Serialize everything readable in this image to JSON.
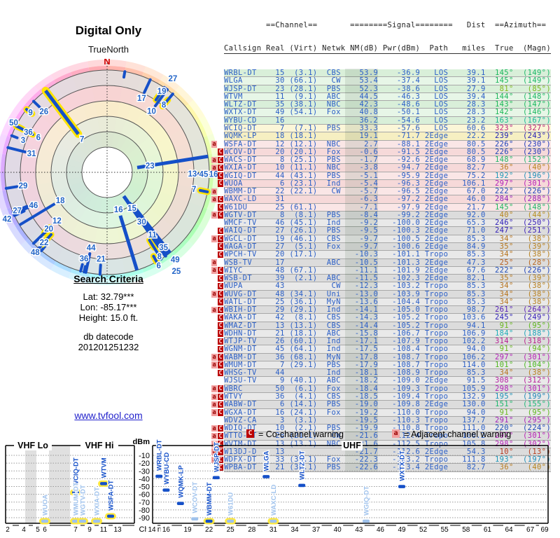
{
  "title": "Digital Only",
  "polar": {
    "north_label": "TrueNorth",
    "n_label": "N"
  },
  "search": {
    "heading": "Search Criteria",
    "lat": "Lat: 32.79***",
    "lon": "Lon: -85.17***",
    "height": "Height: 15.0 ft.",
    "datecode_label": "db datecode",
    "datecode": "201201251232",
    "link": "www.tvfool.com"
  },
  "legend": {
    "co_badge": "C",
    "co_text": "= Co-channel warning",
    "adj_badge": "a",
    "adj_text": "= Adjacent channel warning"
  },
  "colors": {
    "row_text": "#2b5fc7",
    "strong_marker": "#1550c8",
    "weak_marker": "#9fc2ec",
    "highlight": "#ffe93e",
    "co_bg": "#bb0000",
    "adj_bg": "#f2a0a0"
  },
  "table": {
    "header1": "         ==Channel==       ========Signal========   Dist  ==Azimuth==",
    "header2": "Callsign Real (Virt) Netwk NM(dB) Pwr(dBm)  Path   miles  True  (Magn)",
    "rows": [
      [
        "WRBL-DT",
        15,
        "(3.1)",
        "CBS",
        53.9,
        -36.9,
        "LOS",
        39.1,
        145,
        149,
        "",
        "g",
        ""
      ],
      [
        "WLGA",
        30,
        "(66.1)",
        "CW",
        53.4,
        -37.4,
        "LOS",
        39.1,
        145,
        149,
        "",
        "g",
        ""
      ],
      [
        "WJSP-DT",
        23,
        "(28.1)",
        "PBS",
        52.3,
        -38.6,
        "LOS",
        27.9,
        81,
        85,
        "",
        "g",
        ""
      ],
      [
        "WTVM",
        11,
        "(9.1)",
        "ABC",
        44.5,
        -46.3,
        "LOS",
        39.4,
        144,
        148,
        "",
        "g",
        ""
      ],
      [
        "WLTZ-DT",
        35,
        "(38.1)",
        "NBC",
        42.3,
        -48.6,
        "LOS",
        28.3,
        143,
        147,
        "",
        "g",
        ""
      ],
      [
        "WXTX-DT",
        49,
        "(54.1)",
        "Fox",
        40.8,
        -50.1,
        "LOS",
        28.3,
        142,
        146,
        "",
        "g",
        ""
      ],
      [
        "WYBU-CD",
        16,
        "",
        "",
        36.2,
        -54.6,
        "LOS",
        23.2,
        163,
        167,
        "",
        "g",
        ""
      ],
      [
        "WCIQ-DT",
        7,
        "(7.1)",
        "PBS",
        33.3,
        -57.6,
        "LOS",
        60.6,
        323,
        327,
        "",
        "y",
        "h"
      ],
      [
        "WQMK-LP",
        18,
        "(18.1)",
        "",
        19.1,
        -71.7,
        "2Edge",
        22.2,
        239,
        243,
        "",
        "y",
        ""
      ],
      [
        "WSFA-DT",
        12,
        "(12.1)",
        "NBC",
        2.7,
        -88.1,
        "2Edge",
        80.5,
        226,
        230,
        "a",
        "p",
        ""
      ],
      [
        "WCOV-DT",
        20,
        "(20.1)",
        "Fox",
        -0.6,
        -91.5,
        "2Edge",
        80.5,
        226,
        230,
        "C",
        "p",
        "h"
      ],
      [
        "WACS-DT",
        8,
        "(25.1)",
        "PBS",
        -1.7,
        -92.6,
        "2Edge",
        68.9,
        148,
        152,
        "aC",
        "p",
        "h"
      ],
      [
        "WXIA-DT",
        10,
        "(11.1)",
        "NBC",
        -3.8,
        -94.7,
        "2Edge",
        82.7,
        36,
        40,
        "aC",
        "p",
        ""
      ],
      [
        "WGIQ-DT",
        44,
        "(43.1)",
        "PBS",
        -5.1,
        -95.9,
        "2Edge",
        75.2,
        192,
        196,
        "C",
        "p",
        ""
      ],
      [
        "WUOA",
        6,
        "(23.1)",
        "Ind",
        -5.4,
        -96.3,
        "2Edge",
        106.1,
        297,
        301,
        "C",
        "p",
        "h"
      ],
      [
        "WBMM-DT",
        22,
        "(22.1)",
        "CW",
        -5.7,
        -96.5,
        "2Edge",
        67.0,
        222,
        226,
        "a",
        "p",
        "h"
      ],
      [
        "WAXC-LD",
        31,
        "",
        "",
        -6.3,
        -97.2,
        "2Edge",
        46.0,
        284,
        288,
        "aC",
        "p",
        ""
      ],
      [
        "W61DU",
        25,
        "(61.1)",
        "",
        -7.1,
        -97.9,
        "2Edge",
        21.7,
        145,
        148,
        "C",
        "p",
        "h"
      ],
      [
        "WGTV-DT",
        8,
        "(8.1)",
        "PBS",
        -8.4,
        -99.2,
        "2Edge",
        92.0,
        40,
        44,
        "aC",
        "gr",
        "h"
      ],
      [
        "WMCF-TV",
        46,
        "(45.1)",
        "Ind",
        -9.2,
        -100.0,
        "2Edge",
        65.3,
        246,
        250,
        "",
        "gr",
        ""
      ],
      [
        "WAIQ-DT",
        27,
        "(26.1)",
        "PBS",
        -9.5,
        -100.3,
        "2Edge",
        71.0,
        247,
        251,
        "C",
        "gr",
        ""
      ],
      [
        "WGCL-DT",
        19,
        "(46.1)",
        "CBS",
        -9.7,
        -100.5,
        "2Edge",
        85.3,
        34,
        38,
        "aC",
        "gr",
        "h"
      ],
      [
        "WAGA-DT",
        27,
        "(5.1)",
        "Fox",
        -9.7,
        -100.6,
        "2Edge",
        84.9,
        35,
        39,
        "C",
        "gr",
        ""
      ],
      [
        "WPCH-TV",
        20,
        "(17.1)",
        "",
        -10.3,
        -101.1,
        "Tropo",
        85.3,
        34,
        38,
        "C",
        "gr",
        "n"
      ],
      [
        "WSB-TV",
        17,
        "",
        "ABC",
        -10.5,
        -101.3,
        "2Edge",
        47.3,
        25,
        28,
        "a",
        "gr",
        ""
      ],
      [
        "WIYC",
        48,
        "(67.1)",
        "",
        -11.1,
        -101.9,
        "2Edge",
        67.6,
        222,
        226,
        "aC",
        "gr",
        "h"
      ],
      [
        "WSB-DT",
        39,
        "(2.1)",
        "ABC",
        -11.5,
        -102.3,
        "2Edge",
        82.1,
        35,
        39,
        "C",
        "gr",
        "n"
      ],
      [
        "WUPA",
        43,
        "",
        "CW",
        -12.3,
        -103.2,
        "Tropo",
        85.3,
        34,
        38,
        "C",
        "gr",
        "n"
      ],
      [
        "WUVG-DT",
        48,
        "(34.1)",
        "Uni",
        -13.0,
        -103.9,
        "Tropo",
        85.3,
        34,
        38,
        "aC",
        "gr",
        "n"
      ],
      [
        "WATL-DT",
        25,
        "(36.1)",
        "MyN",
        -13.6,
        -104.4,
        "Tropo",
        85.3,
        34,
        38,
        "C",
        "gr",
        "n"
      ],
      [
        "WBIH-DT",
        29,
        "(29.1)",
        "Ind",
        -14.1,
        -105.0,
        "Tropo",
        98.7,
        261,
        264,
        "aC",
        "gr",
        ""
      ],
      [
        "WAKA-DT",
        42,
        "(8.1)",
        "CBS",
        -14.3,
        -105.2,
        "Tropo",
        103.6,
        245,
        249,
        "C",
        "gr",
        ""
      ],
      [
        "WMAZ-DT",
        13,
        "(13.1)",
        "CBS",
        -14.4,
        -105.2,
        "Tropo",
        94.1,
        91,
        95,
        "C",
        "gr",
        ""
      ],
      [
        "WDHN-DT",
        21,
        "(18.1)",
        "ABC",
        -15.8,
        -106.7,
        "Tropo",
        106.9,
        184,
        188,
        "C",
        "gr",
        ""
      ],
      [
        "WTJP-TV",
        26,
        "(60.1)",
        "Ind",
        -17.1,
        -107.9,
        "Tropo",
        102.2,
        314,
        318,
        "C",
        "gr",
        ""
      ],
      [
        "WGNM-DT",
        45,
        "(64.1)",
        "Ind",
        -17.5,
        -108.4,
        "Tropo",
        94.0,
        91,
        94,
        "C",
        "gr",
        "h"
      ],
      [
        "WABM-DT",
        36,
        "(68.1)",
        "MyN",
        -17.8,
        -108.7,
        "Tropo",
        106.2,
        297,
        301,
        "aC",
        "gr",
        "h"
      ],
      [
        "WMUM-DT",
        7,
        "(29.1)",
        "PBS",
        -17.9,
        -108.7,
        "Tropo",
        114.0,
        101,
        104,
        "aC",
        "gr",
        "h"
      ],
      [
        "WHSG-TV",
        44,
        "",
        "Ind",
        -18.1,
        -108.9,
        "Tropo",
        85.3,
        34,
        38,
        "C",
        "gr",
        "n"
      ],
      [
        "WJSU-TV",
        9,
        "(40.1)",
        "ABC",
        -18.2,
        -109.0,
        "2Edge",
        91.5,
        308,
        312,
        "",
        "gr",
        "h"
      ],
      [
        "WBRC",
        50,
        "(6.1)",
        "Fox",
        -18.4,
        -109.3,
        "Tropo",
        105.9,
        298,
        301,
        "aC",
        "gr",
        ""
      ],
      [
        "WTVY",
        36,
        "(4.1)",
        "CBS",
        -18.5,
        -109.4,
        "Tropo",
        132.9,
        195,
        199,
        "aC",
        "gr",
        ""
      ],
      [
        "WABW-DT",
        6,
        "(14.1)",
        "PBS",
        -19.0,
        -109.8,
        "2Edge",
        130.0,
        151,
        155,
        "aC",
        "gr",
        "h"
      ],
      [
        "WGXA-DT",
        16,
        "(24.1)",
        "Fox",
        -19.2,
        -110.0,
        "Tropo",
        94.0,
        91,
        95,
        "aC",
        "gr",
        ""
      ],
      [
        "WDVZ-CA",
        3,
        "(3.1)",
        "",
        -19.5,
        -110.3,
        "Tropo",
        137.7,
        291,
        295,
        "",
        "gr",
        ""
      ],
      [
        "WDIQ-DT",
        10,
        "(2.1)",
        "PBS",
        -19.9,
        -110.8,
        "Tropo",
        111.0,
        220,
        224,
        "aC",
        "gr",
        "n"
      ],
      [
        "WTTO-DT",
        28,
        "(21.1)",
        "CW",
        -21.6,
        -112.4,
        "Tropo",
        106.2,
        297,
        301,
        "aC",
        "gr",
        "n"
      ],
      [
        "WVTM-DT",
        13,
        "(13.1)",
        "NBC",
        -21.6,
        -112.5,
        "Tropo",
        105.8,
        298,
        302,
        "aC",
        "gr",
        "n"
      ],
      [
        "W13DJ-D",
        13,
        "",
        "",
        -21.7,
        -112.6,
        "2Edge",
        54.3,
        10,
        13,
        "aC",
        "gr",
        "n"
      ],
      [
        "WDFX-DT",
        33,
        "(34.1)",
        "Fox",
        -22.3,
        -113.2,
        "Tropo",
        111.8,
        193,
        197,
        "aC",
        "gr",
        "n"
      ],
      [
        "WPBA-DT",
        21,
        "(30.1)",
        "PBS",
        -22.6,
        -113.4,
        "2Edge",
        82.7,
        36,
        40,
        "C",
        "gr",
        "n"
      ]
    ]
  },
  "chart_data": [
    {
      "type": "radar",
      "title": "Digital Only",
      "north_label": "TrueNorth",
      "rings_inner_to_outer": [
        "green",
        "light-green",
        "yellow",
        "pink",
        "gray",
        "azimuth-hue rim"
      ],
      "note": "spokes generated from table.rows: angle = True azimuth, length = NM(dB), label = real channel"
    },
    {
      "type": "scatter",
      "name": "VHF",
      "xlabel": "Channel",
      "ylabel": "dBm",
      "band_labels": [
        "VHF Lo",
        "VHF Hi"
      ],
      "yticks": [
        -10,
        -20,
        -30,
        -40,
        -50,
        -60,
        -70,
        -80,
        -90
      ],
      "xticks": [
        2,
        4,
        5,
        6,
        7,
        9,
        11,
        13
      ],
      "points": [
        {
          "cs": "WUOA",
          "ch": 6,
          "pwr": -96.3,
          "weak": true,
          "hl": true
        },
        {
          "cs": "WCIQ-DT",
          "ch": 7,
          "pwr": -57.6,
          "weak": false,
          "hl": true
        },
        {
          "cs": "WMUM-DT",
          "ch": 7,
          "pwr": -108.7,
          "weak": true,
          "hl": true
        },
        {
          "cs": "WGTV-DT",
          "ch": 8,
          "pwr": -99.2,
          "weak": true,
          "hl": true
        },
        {
          "cs": "WXIA-DT",
          "ch": 10,
          "pwr": -94.7,
          "weak": true,
          "hl": true
        },
        {
          "cs": "WTVM",
          "ch": 11,
          "pwr": -46.3,
          "weak": false,
          "hl": true
        },
        {
          "cs": "WSFA-DT",
          "ch": 12,
          "pwr": -88.1,
          "weak": false,
          "hl": true
        }
      ]
    },
    {
      "type": "scatter",
      "name": "UHF",
      "xlabel": "Channel",
      "ylabel": "dBm",
      "yticks": [
        -10,
        -20,
        -30,
        -40,
        -50,
        -60,
        -70,
        -80,
        -90
      ],
      "xticks": [
        14,
        16,
        19,
        22,
        25,
        28,
        31,
        34,
        37,
        40,
        43,
        46,
        49,
        52,
        55,
        58,
        61,
        64,
        67,
        69
      ],
      "points": [
        {
          "cs": "WRBL-DT",
          "ch": 15,
          "pwr": -36.9,
          "weak": false,
          "hl": false
        },
        {
          "cs": "WYBU-CD",
          "ch": 16,
          "pwr": -54.6,
          "weak": false,
          "hl": false
        },
        {
          "cs": "WQMK-LP",
          "ch": 18,
          "pwr": -71.7,
          "weak": false,
          "hl": false
        },
        {
          "cs": "WCOV-DT",
          "ch": 20,
          "pwr": -91.5,
          "weak": true,
          "hl": false
        },
        {
          "cs": "WBMM-DT",
          "ch": 22,
          "pwr": -96.5,
          "weak": false,
          "hl": true
        },
        {
          "cs": "WJSP-DT",
          "ch": 23,
          "pwr": -38.6,
          "weak": false,
          "hl": false
        },
        {
          "cs": "W61DU",
          "ch": 25,
          "pwr": -97.9,
          "weak": true,
          "hl": true
        },
        {
          "cs": "WLGA",
          "ch": 30,
          "pwr": -37.4,
          "weak": false,
          "hl": false
        },
        {
          "cs": "WAXC-LD",
          "ch": 31,
          "pwr": -97.2,
          "weak": true,
          "hl": true
        },
        {
          "cs": "WLTZ-DT",
          "ch": 35,
          "pwr": -48.6,
          "weak": false,
          "hl": false
        },
        {
          "cs": "WGIQ-DT",
          "ch": 44,
          "pwr": -95.9,
          "weak": true,
          "hl": false
        },
        {
          "cs": "WXTX-DT",
          "ch": 49,
          "pwr": -50.1,
          "weak": false,
          "hl": false
        }
      ]
    }
  ]
}
